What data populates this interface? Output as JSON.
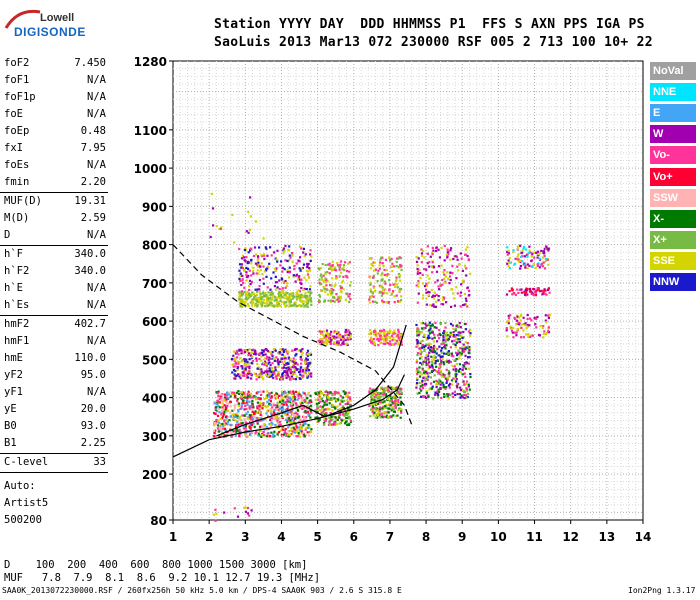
{
  "logo": {
    "brand": "Lowell",
    "product": "DIGISONDE"
  },
  "header": {
    "line1": "Station YYYY DAY  DDD HHMMSS P1  FFS S AXN PPS IGA PS",
    "line2": "SaoLuis 2013 Mar13 072 230000 RSF 005 2 713 100 10+ 22"
  },
  "params": [
    {
      "k": "foF2",
      "v": "7.450"
    },
    {
      "k": "foF1",
      "v": "N/A"
    },
    {
      "k": "foF1p",
      "v": "N/A"
    },
    {
      "k": "foE",
      "v": "N/A"
    },
    {
      "k": "foEp",
      "v": "0.48"
    },
    {
      "k": "fxI",
      "v": "7.95"
    },
    {
      "k": "foEs",
      "v": "N/A"
    },
    {
      "k": "fmin",
      "v": "2.20"
    },
    {
      "k": "MUF(D)",
      "v": "19.31"
    },
    {
      "k": "M(D)",
      "v": "2.59"
    },
    {
      "k": "D",
      "v": "N/A"
    },
    {
      "k": "h`F",
      "v": "340.0"
    },
    {
      "k": "h`F2",
      "v": "340.0"
    },
    {
      "k": "h`E",
      "v": "N/A"
    },
    {
      "k": "h`Es",
      "v": "N/A"
    },
    {
      "k": "hmF2",
      "v": "402.7"
    },
    {
      "k": "hmF1",
      "v": "N/A"
    },
    {
      "k": "hmE",
      "v": "110.0"
    },
    {
      "k": "yF2",
      "v": "95.0"
    },
    {
      "k": "yF1",
      "v": "N/A"
    },
    {
      "k": "yE",
      "v": "20.0"
    },
    {
      "k": "B0",
      "v": "93.0"
    },
    {
      "k": "B1",
      "v": "2.25"
    },
    {
      "k": "C-level",
      "v": "33"
    }
  ],
  "autoscale": {
    "line1": "Auto:",
    "line2": "Artist5",
    "line3": "500200"
  },
  "legend": [
    {
      "label": "NoVal",
      "bg": "#a0a0a0",
      "fg": "#ffffff"
    },
    {
      "label": "NNE",
      "bg": "#00e5ff",
      "fg": "#ffffff"
    },
    {
      "label": "E",
      "bg": "#42a5f5",
      "fg": "#ffffff"
    },
    {
      "label": "W",
      "bg": "#a000b0",
      "fg": "#ffffff"
    },
    {
      "label": "Vo-",
      "bg": "#ff3399",
      "fg": "#ffffff"
    },
    {
      "label": "Vo+",
      "bg": "#ff0033",
      "fg": "#ffffff"
    },
    {
      "label": "SSW",
      "bg": "#ffb3b3",
      "fg": "#ffffff"
    },
    {
      "label": "X-",
      "bg": "#007a00",
      "fg": "#ffffff"
    },
    {
      "label": "X+",
      "bg": "#77bb44",
      "fg": "#ffffff"
    },
    {
      "label": "SSE",
      "bg": "#d4d400",
      "fg": "#ffffff"
    },
    {
      "label": "NNW",
      "bg": "#1a1acc",
      "fg": "#ffffff"
    }
  ],
  "table": {
    "row1": "D    100  200  400  600  800 1000 1500 3000 [km]",
    "row2": "MUF   7.8  7.9  8.1  8.6  9.2 10.1 12.7 19.3 [MHz]"
  },
  "footer": "SAA0K_2013072230000.RSF / 260fx256h 50 kHz 5.0 km / DPS-4 SAA0K 903 / 2.6 S 315.8 E",
  "version": "Ion2Png 1.3.17",
  "chart_data": {
    "type": "scatter",
    "title": "",
    "xlabel": "",
    "ylabel": "",
    "xlim": [
      1,
      14
    ],
    "ylim": [
      80,
      1280
    ],
    "x_ticks": [
      1,
      2,
      3,
      4,
      5,
      6,
      7,
      8,
      9,
      10,
      11,
      12,
      13,
      14
    ],
    "y_ticks": [
      80,
      200,
      300,
      400,
      500,
      600,
      700,
      800,
      900,
      1000,
      1100,
      1280
    ],
    "series": [
      {
        "name": "profile",
        "x": [
          1.0,
          2.0,
          3.0,
          4.0,
          5.0,
          6.0,
          6.8,
          7.2,
          7.4
        ],
        "y": [
          245,
          290,
          310,
          325,
          345,
          370,
          395,
          420,
          460
        ]
      },
      {
        "name": "trace",
        "x": [
          2.2,
          3.0,
          4.0,
          4.6,
          5.2,
          6.0,
          6.6,
          7.1,
          7.45
        ],
        "y": [
          300,
          330,
          360,
          380,
          350,
          380,
          420,
          480,
          590
        ]
      },
      {
        "name": "dashed",
        "x": [
          1.0,
          1.8,
          2.8,
          3.8,
          4.6,
          5.6,
          6.6,
          7.4,
          7.6
        ],
        "y": [
          800,
          720,
          650,
          600,
          560,
          520,
          470,
          380,
          330
        ]
      }
    ]
  }
}
